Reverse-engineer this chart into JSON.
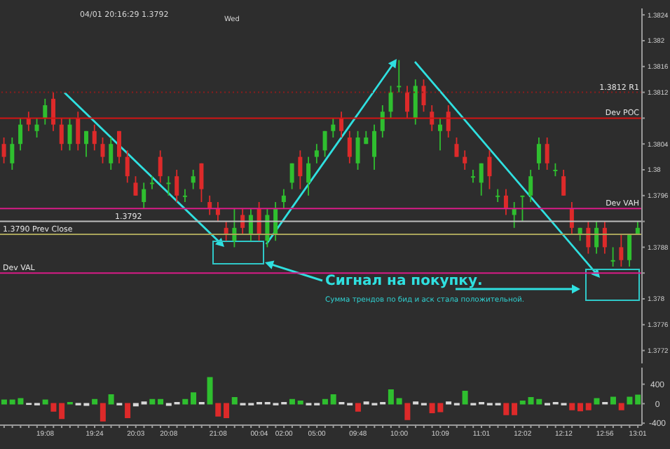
{
  "chart_data": [
    {
      "type": "candlestick",
      "tick_labels": "y",
      "legend": false,
      "grid": false,
      "categories": [
        null,
        null,
        null,
        null,
        null,
        null,
        null,
        null,
        null,
        null,
        null,
        null,
        null,
        null,
        null,
        null,
        null,
        null,
        null,
        null,
        null,
        null,
        null,
        null,
        null,
        null,
        null,
        null,
        null,
        null,
        null,
        null,
        null,
        null,
        null,
        null,
        null,
        null,
        null,
        null,
        null,
        null,
        null,
        null,
        null,
        null,
        null,
        null,
        null,
        null,
        null,
        null,
        null,
        null,
        null,
        null,
        null,
        null,
        null,
        null,
        null,
        null,
        null,
        null,
        null,
        null,
        null,
        null,
        null,
        null,
        null,
        null,
        null,
        null,
        null,
        null,
        null,
        null
      ],
      "ohlc": [
        [
          1.3804,
          1.3805,
          1.3801,
          1.3802
        ],
        [
          1.3801,
          1.3805,
          1.38,
          1.3804
        ],
        [
          1.3804,
          1.3808,
          1.3803,
          1.3807
        ],
        [
          1.3808,
          1.3809,
          1.3806,
          1.3807
        ],
        [
          1.3806,
          1.3808,
          1.3805,
          1.3807
        ],
        [
          1.3808,
          1.3811,
          1.3807,
          1.381
        ],
        [
          1.3811,
          1.3812,
          1.3806,
          1.3807
        ],
        [
          1.3807,
          1.3808,
          1.3803,
          1.3804
        ],
        [
          1.3804,
          1.3808,
          1.3803,
          1.3807
        ],
        [
          1.3808,
          1.3809,
          1.3803,
          1.3804
        ],
        [
          1.3804,
          1.3806,
          1.3802,
          1.3806
        ],
        [
          1.3806,
          1.3807,
          1.3803,
          1.3804
        ],
        [
          1.3804,
          1.3805,
          1.3801,
          1.3802
        ],
        [
          1.3801,
          1.3805,
          1.38,
          1.3804
        ],
        [
          1.3806,
          1.3806,
          1.3801,
          1.3802
        ],
        [
          1.3802,
          1.3803,
          1.3798,
          1.3799
        ],
        [
          1.3798,
          1.3799,
          1.3796,
          1.3796
        ],
        [
          1.3795,
          1.3798,
          1.3794,
          1.3797
        ],
        [
          1.3798,
          1.3799,
          1.3797,
          1.3798
        ],
        [
          1.3802,
          1.3803,
          1.3798,
          1.3799
        ],
        [
          1.3798,
          1.3799,
          1.3796,
          1.3798
        ],
        [
          1.3799,
          1.38,
          1.3795,
          1.3796
        ],
        [
          1.3796,
          1.3797,
          1.3795,
          1.3796
        ],
        [
          1.3798,
          1.38,
          1.3797,
          1.3799
        ],
        [
          1.3801,
          1.3801,
          1.3795,
          1.3797
        ],
        [
          1.3795,
          1.3796,
          1.3793,
          1.3794
        ],
        [
          1.3794,
          1.3795,
          1.3792,
          1.3793
        ],
        [
          1.3791,
          1.3792,
          1.3789,
          1.379
        ],
        [
          1.3789,
          1.3794,
          1.3788,
          1.3791
        ],
        [
          1.3793,
          1.3794,
          1.379,
          1.3791
        ],
        [
          1.379,
          1.3794,
          1.3789,
          1.3793
        ],
        [
          1.3794,
          1.3795,
          1.3789,
          1.379
        ],
        [
          1.3789,
          1.3794,
          1.3788,
          1.3793
        ],
        [
          1.379,
          1.3795,
          1.3789,
          1.3794
        ],
        [
          1.3795,
          1.3797,
          1.3794,
          1.3796
        ],
        [
          1.3798,
          1.3801,
          1.3797,
          1.3801
        ],
        [
          1.3802,
          1.3803,
          1.3797,
          1.3799
        ],
        [
          1.3798,
          1.3802,
          1.3796,
          1.3801
        ],
        [
          1.3802,
          1.3804,
          1.3801,
          1.3803
        ],
        [
          1.3803,
          1.3806,
          1.3802,
          1.3806
        ],
        [
          1.3806,
          1.3808,
          1.3805,
          1.3807
        ],
        [
          1.3808,
          1.3809,
          1.3805,
          1.3806
        ],
        [
          1.3805,
          1.3806,
          1.3801,
          1.3802
        ],
        [
          1.3801,
          1.3806,
          1.38,
          1.3805
        ],
        [
          1.3804,
          1.3806,
          1.3804,
          1.3805
        ],
        [
          1.3802,
          1.3807,
          1.38,
          1.3806
        ],
        [
          1.3806,
          1.381,
          1.3805,
          1.3809
        ],
        [
          1.3809,
          1.3813,
          1.3808,
          1.3812
        ],
        [
          1.3813,
          1.3817,
          1.3812,
          1.3813
        ],
        [
          1.3812,
          1.3813,
          1.3808,
          1.3809
        ],
        [
          1.3808,
          1.3814,
          1.3807,
          1.3813
        ],
        [
          1.3813,
          1.3814,
          1.3809,
          1.381
        ],
        [
          1.3809,
          1.381,
          1.3806,
          1.3807
        ],
        [
          1.3806,
          1.3808,
          1.3803,
          1.3807
        ],
        [
          1.3809,
          1.381,
          1.3805,
          1.3806
        ],
        [
          1.3804,
          1.3805,
          1.3802,
          1.3802
        ],
        [
          1.3802,
          1.3803,
          1.38,
          1.3801
        ],
        [
          1.3799,
          1.38,
          1.3798,
          1.3799
        ],
        [
          1.3798,
          1.3801,
          1.3796,
          1.3801
        ],
        [
          1.3802,
          1.3803,
          1.3797,
          1.3799
        ],
        [
          1.3796,
          1.3797,
          1.3795,
          1.3796
        ],
        [
          1.3796,
          1.3797,
          1.3793,
          1.3794
        ],
        [
          1.3793,
          1.3795,
          1.3791,
          1.3794
        ],
        [
          1.3796,
          1.3796,
          1.3792,
          1.3796
        ],
        [
          1.3796,
          1.38,
          1.3795,
          1.3799
        ],
        [
          1.3801,
          1.3805,
          1.38,
          1.3804
        ],
        [
          1.3804,
          1.3805,
          1.38,
          1.3801
        ],
        [
          1.38,
          1.3801,
          1.3799,
          1.38
        ],
        [
          1.3799,
          1.38,
          1.3796,
          1.3796
        ],
        [
          1.3794,
          1.3795,
          1.379,
          1.3791
        ],
        [
          1.379,
          1.3791,
          1.3789,
          1.3791
        ],
        [
          1.3791,
          1.3792,
          1.3787,
          1.3788
        ],
        [
          1.3788,
          1.3792,
          1.3787,
          1.3791
        ],
        [
          1.3791,
          1.3792,
          1.3787,
          1.3788
        ],
        [
          1.3786,
          1.3788,
          1.3785,
          1.3786
        ],
        [
          1.3788,
          1.379,
          1.3785,
          1.3786
        ],
        [
          1.3786,
          1.379,
          1.3785,
          1.379
        ],
        [
          1.379,
          1.3792,
          1.379,
          1.3791
        ]
      ],
      "ylim": [
        1.377,
        1.3825
      ],
      "yticks": [
        1.3772,
        1.3776,
        1.378,
        {
          "value": 1.3784,
          "label": null
        },
        1.3788,
        {
          "value": 1.3792,
          "label": null
        },
        1.3796,
        1.38,
        1.3804,
        {
          "value": 1.3808,
          "label": null
        },
        1.3812,
        1.3816,
        1.382,
        1.3824
      ],
      "ref_lines": [
        {
          "axis": "y",
          "value": 1.3812,
          "label": "1.3812 R1",
          "color": "#8b1c1c",
          "line_style": "dotted"
        },
        {
          "axis": "y",
          "value": 1.3808,
          "label": "Dev POC",
          "color": "#d41414",
          "line_style": "solid"
        },
        {
          "axis": "y",
          "value": 1.3794,
          "label": "Dev VAH",
          "color": "#d81b87",
          "line_style": "solid"
        },
        {
          "axis": "y",
          "value": 1.3792,
          "label": "1.3792",
          "color": "#bdbdbd",
          "line_style": "solid"
        },
        {
          "axis": "y",
          "value": 1.379,
          "label": "1.3790 Prev Close",
          "color": "#a8a35a",
          "line_style": "solid"
        },
        {
          "axis": "y",
          "value": 1.3784,
          "label": "Dev VAL",
          "color": "#d81b87",
          "line_style": "solid"
        }
      ],
      "annotations": [
        "04/01 20:16:29  1.3792",
        "Wed",
        "Сигнал на покупку.",
        "Сумма трендов по бид и аск стала положительной."
      ]
    },
    {
      "type": "bar",
      "legend": false,
      "grid": false,
      "categories": [
        null,
        null,
        null,
        null,
        null,
        "19:08",
        null,
        null,
        null,
        null,
        null,
        "19:24",
        null,
        null,
        null,
        null,
        "20:03",
        null,
        null,
        null,
        "20:08",
        null,
        null,
        null,
        null,
        null,
        "21:08",
        null,
        null,
        null,
        null,
        "00:04",
        null,
        null,
        "02:00",
        null,
        null,
        null,
        "05:00",
        null,
        null,
        null,
        null,
        "09:48",
        null,
        null,
        null,
        null,
        "10:00",
        null,
        null,
        null,
        null,
        "10:09",
        null,
        null,
        null,
        null,
        "11:01",
        null,
        null,
        null,
        null,
        "12:02",
        null,
        null,
        null,
        null,
        "12:12",
        null,
        null,
        null,
        null,
        "12:56",
        null,
        null,
        null,
        "13:01"
      ],
      "values": [
        70,
        70,
        100,
        -10,
        -20,
        70,
        -150,
        -300,
        20,
        -20,
        -30,
        80,
        -350,
        180,
        -20,
        -280,
        -40,
        30,
        80,
        80,
        -30,
        20,
        80,
        220,
        20,
        530,
        -250,
        -280,
        120,
        -20,
        -20,
        20,
        20,
        -20,
        20,
        80,
        50,
        -20,
        -20,
        80,
        180,
        20,
        -20,
        -150,
        30,
        -20,
        20,
        280,
        100,
        -320,
        30,
        -20,
        -180,
        -160,
        30,
        -20,
        250,
        -20,
        20,
        -20,
        -20,
        -220,
        -220,
        50,
        120,
        80,
        -20,
        20,
        -20,
        -120,
        -140,
        -120,
        100,
        20,
        130,
        -120,
        130,
        170
      ],
      "colors": [
        "#2fbf2f",
        "#2fbf2f",
        "#2fbf2f",
        "#d8d8d8",
        "#d8d8d8",
        "#2fbf2f",
        "#dd2a2a",
        "#dd2a2a",
        "#2fbf2f",
        "#d8d8d8",
        "#d8d8d8",
        "#2fbf2f",
        "#dd2a2a",
        "#2fbf2f",
        "#d8d8d8",
        "#dd2a2a",
        "#d8d8d8",
        "#d8d8d8",
        "#2fbf2f",
        "#2fbf2f",
        "#d8d8d8",
        "#d8d8d8",
        "#2fbf2f",
        "#2fbf2f",
        "#d8d8d8",
        "#2fbf2f",
        "#dd2a2a",
        "#dd2a2a",
        "#2fbf2f",
        "#d8d8d8",
        "#d8d8d8",
        "#d8d8d8",
        "#d8d8d8",
        "#d8d8d8",
        "#d8d8d8",
        "#2fbf2f",
        "#2fbf2f",
        "#d8d8d8",
        "#d8d8d8",
        "#2fbf2f",
        "#2fbf2f",
        "#d8d8d8",
        "#d8d8d8",
        "#dd2a2a",
        "#d8d8d8",
        "#d8d8d8",
        "#d8d8d8",
        "#2fbf2f",
        "#2fbf2f",
        "#dd2a2a",
        "#d8d8d8",
        "#d8d8d8",
        "#dd2a2a",
        "#dd2a2a",
        "#d8d8d8",
        "#d8d8d8",
        "#2fbf2f",
        "#d8d8d8",
        "#d8d8d8",
        "#d8d8d8",
        "#d8d8d8",
        "#dd2a2a",
        "#dd2a2a",
        "#2fbf2f",
        "#2fbf2f",
        "#2fbf2f",
        "#d8d8d8",
        "#d8d8d8",
        "#d8d8d8",
        "#dd2a2a",
        "#dd2a2a",
        "#dd2a2a",
        "#2fbf2f",
        "#d8d8d8",
        "#2fbf2f",
        "#dd2a2a",
        "#2fbf2f",
        "#2fbf2f"
      ],
      "ylim": [
        -440,
        740
      ],
      "yticks": [
        -400,
        0,
        400
      ]
    }
  ]
}
